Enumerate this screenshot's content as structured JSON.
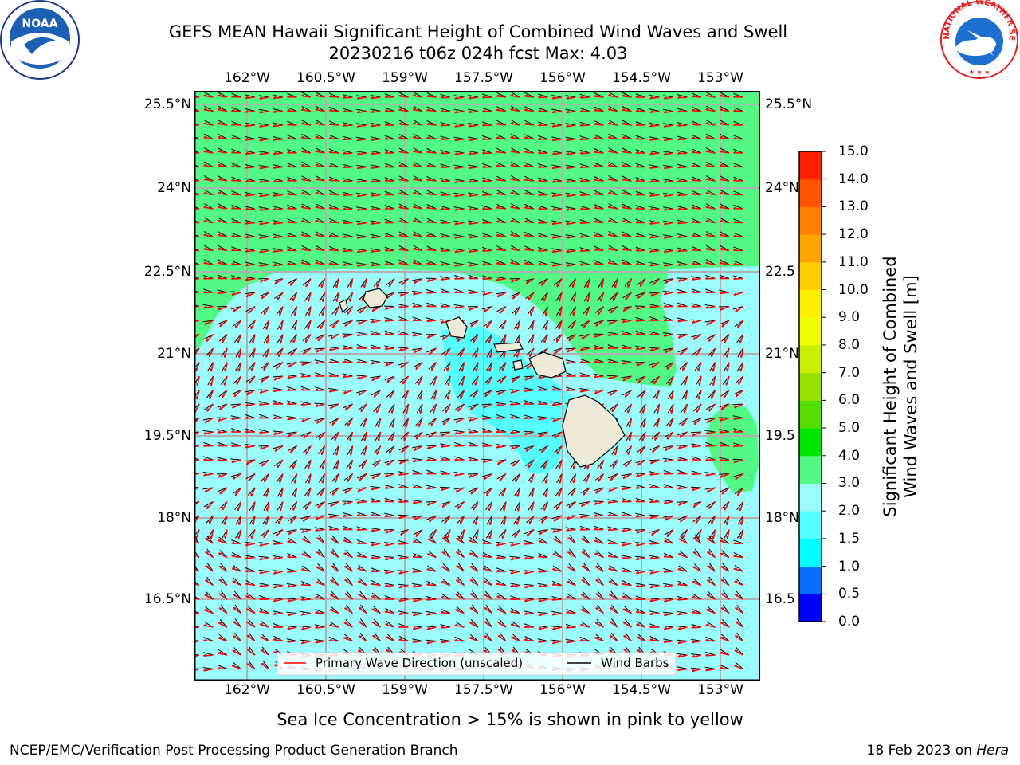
{
  "title": {
    "line1": "GEFS MEAN Hawaii Significant Height of Combined Wind Waves and Swell",
    "line2": "20230216 t06z 024h fcst   Max: 4.03"
  },
  "map": {
    "x_ticks": [
      "162°W",
      "160.5°W",
      "159°W",
      "157.5°W",
      "156°W",
      "154.5°W",
      "153°W"
    ],
    "y_ticks_left": [
      "25.5°N",
      "24°N",
      "22.5°N",
      "21°N",
      "19.5°N",
      "18°N",
      "16.5°N"
    ],
    "y_ticks_right": [
      "25.5°N",
      "24°N",
      "22.5",
      "21°N",
      "19.5",
      "18°N",
      "16.5"
    ],
    "legend": {
      "wave_label": "Primary Wave Direction (unscaled)",
      "barb_label": "Wind Barbs"
    },
    "colors": {
      "land": "#efead8",
      "wave_arrow": "#ff0000",
      "barb": "#000000"
    }
  },
  "colorbar": {
    "title_line1": "Significant Height of Combined",
    "title_line2": "Wind Waves and Swell [m]",
    "levels": [
      "0.0",
      "0.5",
      "1.0",
      "1.5",
      "2.0",
      "3.0",
      "4.0",
      "5.0",
      "6.0",
      "7.0",
      "8.0",
      "9.0",
      "10.0",
      "11.0",
      "12.0",
      "13.0",
      "14.0",
      "15.0"
    ],
    "colors": [
      "#0000ff",
      "#0a6eff",
      "#00ffff",
      "#55ffff",
      "#9bfcfc",
      "#52f985",
      "#00e600",
      "#55dd00",
      "#99e000",
      "#ccee00",
      "#eeff00",
      "#ffee00",
      "#ffcc00",
      "#ffa500",
      "#ff8000",
      "#ff5500",
      "#ff2200"
    ]
  },
  "captions": {
    "sea_ice": "Sea Ice Concentration > 15% is shown in pink to yellow",
    "org": "NCEP/EMC/Verification Post Processing Product Generation Branch",
    "date": "18 Feb 2023 on ",
    "machine": "Hera"
  },
  "logos": {
    "noaa_text": "NOAA",
    "nws_text": "NATIONAL WEATHER SERVICE"
  }
}
